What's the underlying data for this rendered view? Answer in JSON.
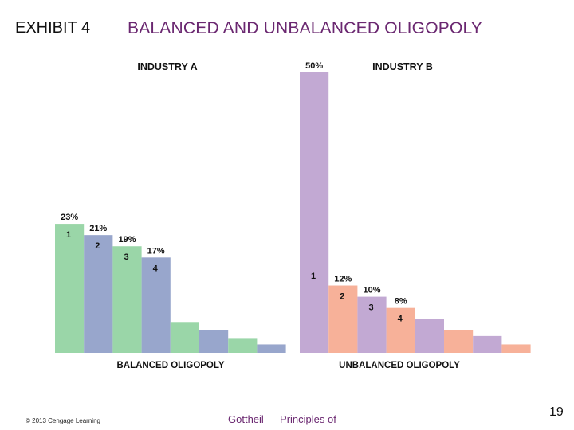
{
  "header": {
    "exhibit": "EXHIBIT 4",
    "title": "BALANCED AND UNBALANCED OLIGOPOLY"
  },
  "footer": {
    "copyright": "© 2013 Cengage Learning",
    "book": "Gottheil — Principles of",
    "page": "19"
  },
  "colors": {
    "green": "#9ad6a8",
    "blue": "#98a6cc",
    "purple": "#c2a9d3",
    "salmon": "#f7b199",
    "title": "#6a2770"
  },
  "chart_data": [
    {
      "type": "bar",
      "title": "INDUSTRY A",
      "xlabel": "BALANCED OLIGOPOLY",
      "ylabel": "",
      "ylim": [
        0,
        50
      ],
      "firm_labels": [
        "1",
        "2",
        "3",
        "4",
        "",
        "",
        "",
        ""
      ],
      "value_labels": [
        "23%",
        "21%",
        "19%",
        "17%",
        "",
        "",
        "",
        ""
      ],
      "values": [
        23,
        21,
        19,
        17,
        5.5,
        4,
        2.5,
        1.5
      ],
      "bar_colors": [
        "green",
        "blue",
        "green",
        "blue",
        "green",
        "blue",
        "green",
        "blue"
      ]
    },
    {
      "type": "bar",
      "title": "INDUSTRY B",
      "xlabel": "UNBALANCED OLIGOPOLY",
      "ylabel": "",
      "ylim": [
        0,
        50
      ],
      "firm_labels": [
        "1",
        "2",
        "3",
        "4",
        "",
        "",
        "",
        ""
      ],
      "value_labels": [
        "50%",
        "12%",
        "10%",
        "8%",
        "",
        "",
        "",
        ""
      ],
      "values": [
        50,
        12,
        10,
        8,
        6,
        4,
        3,
        1.5
      ],
      "bar_colors": [
        "purple",
        "salmon",
        "purple",
        "salmon",
        "purple",
        "salmon",
        "purple",
        "salmon"
      ]
    }
  ]
}
